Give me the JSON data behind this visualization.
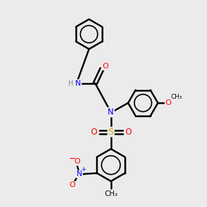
{
  "background_color": "#ebebeb",
  "line_color": "#000000",
  "bond_width": 1.8,
  "atom_colors": {
    "N": "#0000ff",
    "O": "#ff0000",
    "S": "#ccaa00",
    "H": "#888888",
    "C": "#000000"
  },
  "figsize": [
    3.0,
    3.0
  ],
  "dpi": 100
}
